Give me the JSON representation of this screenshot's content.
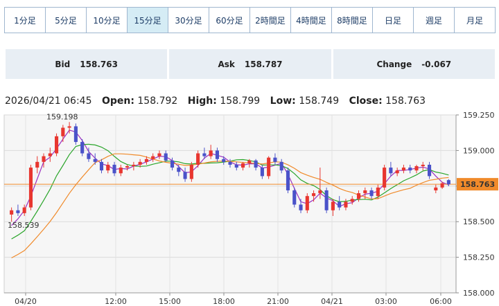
{
  "timeframes": [
    "1分足",
    "5分足",
    "10分足",
    "15分足",
    "30分足",
    "60分足",
    "2時間足",
    "4時間足",
    "8時間足",
    "日足",
    "週足",
    "月足"
  ],
  "active_timeframe": "15分足",
  "quote": {
    "bid_label": "Bid",
    "bid": "158.763",
    "ask_label": "Ask",
    "ask": "158.787",
    "change_label": "Change",
    "change": "-0.067"
  },
  "ohlc": {
    "datetime": "2026/04/21 06:45",
    "open_label": "Open:",
    "open": "158.792",
    "high_label": "High:",
    "high": "158.799",
    "low_label": "Low:",
    "low": "158.749",
    "close_label": "Close:",
    "close": "158.763"
  },
  "chart_data": {
    "type": "candlestick",
    "ylim": [
      158.0,
      159.25
    ],
    "y_ticks": [
      "159.250",
      "159.000",
      "158.750",
      "158.500",
      "158.250",
      "158.000"
    ],
    "x_ticks": [
      "04/20",
      "12:00",
      "15:00",
      "18:00",
      "21:00",
      "04/21",
      "03:00",
      "06:00"
    ],
    "current_price": "158.763",
    "current_price_value": 158.763,
    "annotations": [
      {
        "text": "159.198",
        "value": 159.198,
        "kind": "high"
      },
      {
        "text": "158.539",
        "value": 158.539,
        "kind": "low"
      }
    ],
    "up_color": "#e8362f",
    "down_color": "#4a52c9",
    "ma_colors": [
      "#9b2fc0",
      "#2aa52a",
      "#f08a2a"
    ],
    "candles": [
      [
        158.55,
        158.6,
        158.5,
        158.58
      ],
      [
        158.58,
        158.62,
        158.54,
        158.56
      ],
      [
        158.56,
        158.62,
        158.54,
        158.6
      ],
      [
        158.6,
        158.9,
        158.58,
        158.88
      ],
      [
        158.88,
        158.96,
        158.84,
        158.92
      ],
      [
        158.92,
        158.98,
        158.88,
        158.96
      ],
      [
        158.96,
        159.02,
        158.92,
        158.98
      ],
      [
        158.98,
        159.12,
        158.96,
        159.1
      ],
      [
        159.1,
        159.18,
        159.06,
        159.16
      ],
      [
        159.16,
        159.2,
        159.12,
        159.17
      ],
      [
        159.17,
        159.19,
        159.04,
        159.06
      ],
      [
        159.06,
        159.08,
        158.96,
        158.98
      ],
      [
        158.98,
        159.02,
        158.92,
        158.94
      ],
      [
        158.94,
        158.98,
        158.9,
        158.92
      ],
      [
        158.92,
        158.94,
        158.84,
        158.86
      ],
      [
        158.86,
        158.92,
        158.84,
        158.9
      ],
      [
        158.9,
        158.92,
        158.82,
        158.84
      ],
      [
        158.84,
        158.9,
        158.82,
        158.88
      ],
      [
        158.88,
        158.9,
        158.86,
        158.89
      ],
      [
        158.89,
        158.92,
        158.86,
        158.9
      ],
      [
        158.9,
        158.94,
        158.88,
        158.92
      ],
      [
        158.92,
        158.96,
        158.9,
        158.94
      ],
      [
        158.94,
        158.98,
        158.92,
        158.96
      ],
      [
        158.96,
        159.0,
        158.94,
        158.98
      ],
      [
        158.98,
        159.0,
        158.92,
        158.93
      ],
      [
        158.93,
        158.95,
        158.86,
        158.88
      ],
      [
        158.88,
        158.9,
        158.82,
        158.85
      ],
      [
        158.85,
        158.88,
        158.78,
        158.8
      ],
      [
        158.8,
        158.92,
        158.78,
        158.9
      ],
      [
        158.9,
        159.0,
        158.88,
        158.98
      ],
      [
        158.98,
        159.02,
        158.94,
        158.96
      ],
      [
        158.96,
        159.04,
        158.94,
        159.0
      ],
      [
        159.0,
        159.02,
        158.92,
        158.94
      ],
      [
        158.94,
        158.96,
        158.9,
        158.92
      ],
      [
        158.92,
        158.94,
        158.88,
        158.9
      ],
      [
        158.9,
        158.92,
        158.86,
        158.88
      ],
      [
        158.88,
        158.92,
        158.86,
        158.91
      ],
      [
        158.91,
        158.94,
        158.88,
        158.93
      ],
      [
        158.93,
        158.94,
        158.86,
        158.88
      ],
      [
        158.88,
        158.9,
        158.8,
        158.82
      ],
      [
        158.82,
        158.96,
        158.8,
        158.95
      ],
      [
        158.95,
        158.98,
        158.9,
        158.92
      ],
      [
        158.92,
        158.94,
        158.84,
        158.86
      ],
      [
        158.86,
        158.88,
        158.7,
        158.72
      ],
      [
        158.72,
        158.74,
        158.6,
        158.62
      ],
      [
        158.62,
        158.66,
        158.56,
        158.58
      ],
      [
        158.58,
        158.7,
        158.56,
        158.68
      ],
      [
        158.68,
        158.72,
        158.64,
        158.7
      ],
      [
        158.7,
        158.88,
        158.66,
        158.72
      ],
      [
        158.72,
        158.74,
        158.56,
        158.58
      ],
      [
        158.58,
        158.66,
        158.54,
        158.64
      ],
      [
        158.64,
        158.68,
        158.58,
        158.6
      ],
      [
        158.6,
        158.66,
        158.58,
        158.64
      ],
      [
        158.64,
        158.68,
        158.62,
        158.66
      ],
      [
        158.66,
        158.72,
        158.64,
        158.7
      ],
      [
        158.7,
        158.74,
        158.66,
        158.72
      ],
      [
        158.72,
        158.74,
        158.66,
        158.68
      ],
      [
        158.68,
        158.76,
        158.66,
        158.74
      ],
      [
        158.74,
        158.9,
        158.72,
        158.88
      ],
      [
        158.88,
        158.92,
        158.82,
        158.84
      ],
      [
        158.84,
        158.88,
        158.82,
        158.86
      ],
      [
        158.86,
        158.9,
        158.84,
        158.88
      ],
      [
        158.88,
        158.9,
        158.84,
        158.86
      ],
      [
        158.86,
        158.9,
        158.84,
        158.89
      ],
      [
        158.89,
        158.92,
        158.86,
        158.9
      ],
      [
        158.9,
        158.92,
        158.8,
        158.82
      ],
      [
        158.72,
        158.76,
        158.7,
        158.74
      ],
      [
        158.74,
        158.78,
        158.73,
        158.77
      ],
      [
        158.792,
        158.799,
        158.749,
        158.763
      ]
    ]
  }
}
